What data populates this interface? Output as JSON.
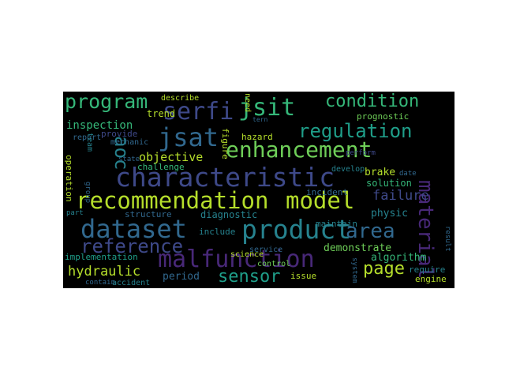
{
  "palette": {
    "background": "#000000",
    "purple": "#482878",
    "violet": "#3e4989",
    "blue": "#31688e",
    "teal": "#26828e",
    "green": "#1f9e89",
    "seafoam": "#35b779",
    "lime": "#6ece58",
    "yellow": "#b5de2b",
    "deep": "#440154"
  },
  "words": {
    "recommendation": "recommendation",
    "model": "model",
    "characteristic": "characteristic",
    "product": "product",
    "dataset": "dataset",
    "malfunction": "malfunction",
    "enhancement": "enhancement",
    "serfi": "serfi",
    "jsit": "jsit",
    "jsat": "jsat",
    "area": "area",
    "material": "material",
    "reference": "reference",
    "program": "program",
    "condition": "condition",
    "regulation": "regulation",
    "page": "page",
    "sensor": "sensor",
    "aoc": "aoc",
    "hydraulic": "hydraulic",
    "failure": "failure",
    "objective": "objective",
    "inspection": "inspection",
    "diagnostic": "diagnostic",
    "demonstrate": "demonstrate",
    "algorithm": "algorithm",
    "implementation": "implementation",
    "brake": "brake",
    "solution": "solution",
    "physic": "physic",
    "period": "period",
    "structure": "structure",
    "challenge": "challenge",
    "include": "include",
    "maintain": "maintain",
    "prognostic": "prognostic",
    "describe": "describe",
    "trend": "trend",
    "provide": "provide",
    "mechanic": "mechanic",
    "hazard": "hazard",
    "science": "science",
    "incident": "incident",
    "accident": "accident",
    "control": "control",
    "service": "service",
    "issue": "issue",
    "engine": "engine",
    "require": "require",
    "operation": "operation",
    "report": "report",
    "team": "team",
    "figure": "figure",
    "need": "need",
    "perform": "perform",
    "develop": "develop",
    "date": "date",
    "group": "group",
    "state": "state",
    "result": "result",
    "part": "part",
    "contain": "contain",
    "tern": "tern",
    "system": "system"
  }
}
